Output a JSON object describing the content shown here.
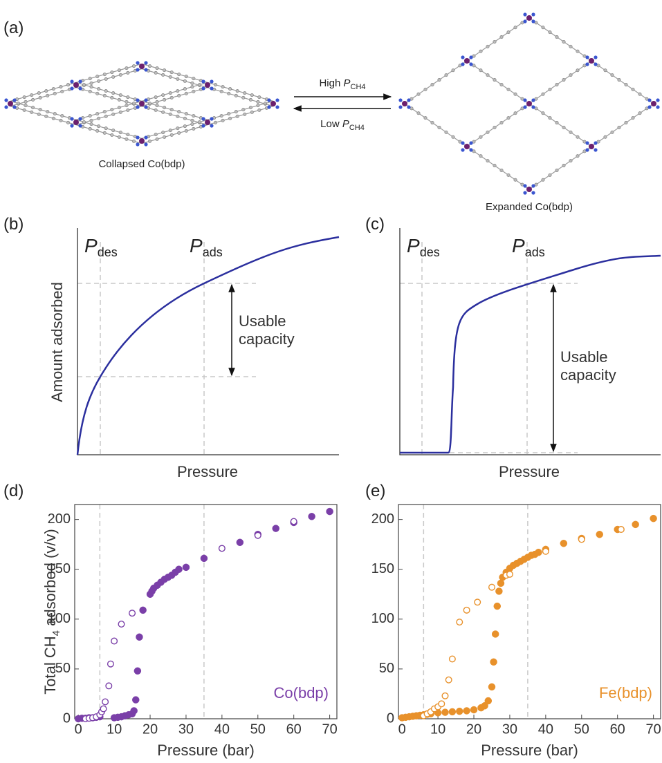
{
  "panel_a": {
    "label": "(a)",
    "left_caption": "Collapsed Co(bdp)",
    "right_caption": "Expanded Co(bdp)",
    "forward": {
      "text": "High ",
      "symbol": "P",
      "subscript": "CH4"
    },
    "backward": {
      "text": "Low ",
      "symbol": "P",
      "subscript": "CH4"
    }
  },
  "panel_b": {
    "label": "(b)",
    "pdes": {
      "symbol": "P",
      "subscript": "des"
    },
    "pads": {
      "symbol": "P",
      "subscript": "ads"
    },
    "y_label": "Amount adsorbed",
    "x_label": "Pressure",
    "annotation": [
      "Usable",
      "capacity"
    ]
  },
  "panel_c": {
    "label": "(c)",
    "pdes": {
      "symbol": "P",
      "subscript": "des"
    },
    "pads": {
      "symbol": "P",
      "subscript": "ads"
    },
    "x_label": "Pressure",
    "annotation": [
      "Usable",
      "capacity"
    ]
  },
  "chart_data": [
    {
      "type": "scatter",
      "label": "(d)",
      "x_label": "Pressure (bar)",
      "y_label": {
        "pre": "Total CH",
        "sub": "4",
        "post": " adsorbed (v/v)"
      },
      "xlim": [
        -1,
        72
      ],
      "ylim": [
        0,
        215
      ],
      "xticks": [
        0,
        10,
        20,
        30,
        40,
        50,
        60,
        70
      ],
      "yticks": [
        0,
        50,
        100,
        150,
        200
      ],
      "vlines": [
        6,
        35
      ],
      "series": [
        {
          "name": "Co(bdp)",
          "color": "#7a3fa8",
          "marker": "filled",
          "x": [
            0,
            1,
            2,
            3,
            4,
            5,
            6,
            10,
            11,
            12,
            13,
            14,
            15,
            15.5,
            16,
            16.5,
            17,
            18,
            20,
            20.5,
            21,
            22,
            23,
            24,
            25,
            26,
            27,
            28,
            30,
            35,
            45,
            50,
            55,
            60,
            65,
            70
          ],
          "values": [
            0,
            0.5,
            0.5,
            1,
            1,
            1.5,
            2,
            1,
            1.5,
            2,
            3,
            4,
            5,
            8,
            19,
            48,
            82,
            109,
            125,
            128,
            131,
            134,
            137,
            140,
            142,
            144,
            147,
            150,
            152,
            161,
            177,
            185,
            191,
            197,
            203,
            208
          ]
        },
        {
          "color": "#7a3fa8",
          "marker": "open",
          "x": [
            2,
            3,
            4,
            5,
            6,
            6.5,
            7,
            7.5,
            8.5,
            9,
            10,
            12,
            15,
            40,
            50,
            60
          ],
          "values": [
            0,
            0.5,
            1,
            2,
            4,
            7,
            10,
            17,
            33,
            55,
            78,
            95,
            106,
            171,
            184,
            198
          ]
        }
      ]
    },
    {
      "type": "scatter",
      "label": "(e)",
      "x_label": "Pressure (bar)",
      "xlim": [
        -1,
        72
      ],
      "ylim": [
        0,
        215
      ],
      "xticks": [
        0,
        10,
        20,
        30,
        40,
        50,
        60,
        70
      ],
      "yticks": [
        0,
        50,
        100,
        150,
        200
      ],
      "vlines": [
        6,
        35
      ],
      "series": [
        {
          "name": "Fe(bdp)",
          "color": "#e8912b",
          "marker": "filled",
          "x": [
            0,
            1,
            2,
            3,
            4,
            5,
            6,
            7,
            8,
            10,
            12,
            14,
            16,
            18,
            20,
            22,
            23,
            24,
            25,
            25.5,
            26,
            26.5,
            27,
            27.5,
            28,
            29,
            30,
            31,
            32,
            33,
            34,
            35,
            36,
            37,
            38,
            40,
            45,
            50,
            55,
            60,
            65,
            70
          ],
          "values": [
            1,
            1.5,
            2,
            2.5,
            3,
            3.5,
            4,
            4.5,
            5,
            6,
            6.5,
            7,
            7.5,
            8,
            9,
            11,
            13,
            18,
            32,
            57,
            85,
            113,
            128,
            136,
            142,
            147,
            151,
            154,
            156,
            158,
            160,
            162,
            164,
            165,
            167,
            170,
            176,
            181,
            185,
            190,
            195,
            201
          ]
        },
        {
          "color": "#e8912b",
          "marker": "open",
          "x": [
            6,
            7,
            8,
            9,
            10,
            11,
            12,
            13,
            14,
            16,
            18,
            21,
            25,
            29,
            30,
            40,
            50,
            61
          ],
          "values": [
            3,
            5,
            7,
            10,
            12,
            15,
            23,
            39,
            60,
            97,
            109,
            117,
            132,
            144,
            145,
            168,
            180,
            190
          ]
        }
      ]
    }
  ]
}
